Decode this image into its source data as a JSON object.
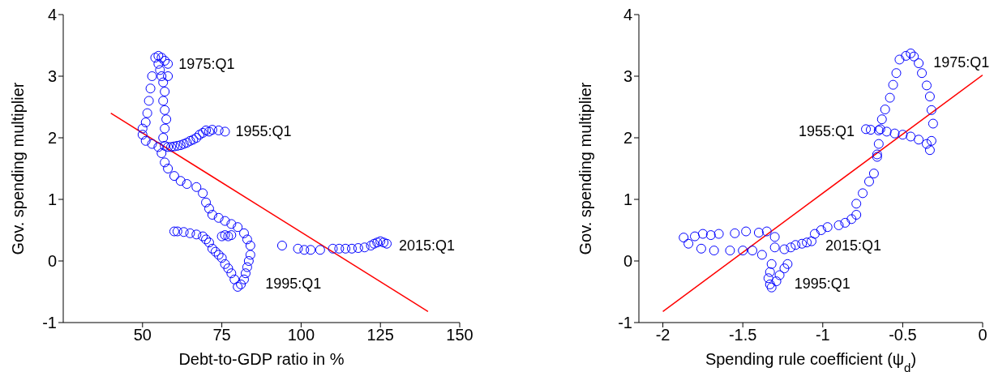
{
  "chart_data": [
    {
      "type": "scatter",
      "xlabel": "Debt-to-GDP ratio in %",
      "ylabel": "Gov. spending multiplier",
      "xlim": [
        25,
        150
      ],
      "ylim": [
        -1,
        4
      ],
      "xticks": [
        50,
        75,
        100,
        125,
        150
      ],
      "yticks": [
        -1,
        0,
        1,
        2,
        3,
        4
      ],
      "series": [
        {
          "marker": "circle",
          "color": "#0000ff",
          "x": [
            76,
            74,
            72,
            71,
            70,
            69,
            68,
            67,
            66,
            65,
            64,
            63,
            62,
            61,
            60,
            59,
            58,
            57,
            56.5,
            57,
            57.5,
            57,
            56.5,
            57,
            56.5,
            56,
            55.5,
            55,
            54,
            55,
            56,
            57,
            58,
            58,
            53,
            52.5,
            52,
            51.5,
            51,
            50,
            50,
            51,
            53,
            55,
            56,
            57,
            58,
            60,
            62,
            64,
            67,
            69,
            70,
            71,
            72,
            74,
            76,
            78,
            80,
            82,
            83,
            84,
            84,
            83.5,
            83,
            82.5,
            82,
            81,
            80,
            79,
            78,
            77,
            76,
            75,
            74,
            73,
            72,
            71,
            70,
            69,
            67,
            65,
            63,
            61,
            60,
            75,
            76,
            77,
            78,
            94,
            99,
            101,
            103,
            106,
            110,
            112,
            114,
            116,
            118,
            120,
            122,
            123,
            124,
            125,
            126,
            127
          ],
          "values": [
            2.1,
            2.12,
            2.13,
            2.1,
            2.12,
            2.08,
            2.05,
            2,
            1.97,
            1.95,
            1.92,
            1.9,
            1.88,
            1.87,
            1.86,
            1.85,
            1.85,
            1.87,
            2,
            2.15,
            2.3,
            2.45,
            2.6,
            2.75,
            2.9,
            3,
            3.1,
            3.2,
            3.3,
            3.33,
            3.3,
            3.25,
            3.2,
            3,
            3,
            2.8,
            2.6,
            2.4,
            2.25,
            2.15,
            2.05,
            1.95,
            1.9,
            1.85,
            1.75,
            1.6,
            1.5,
            1.38,
            1.3,
            1.25,
            1.2,
            1.1,
            0.95,
            0.85,
            0.75,
            0.7,
            0.65,
            0.6,
            0.55,
            0.45,
            0.35,
            0.25,
            0.1,
            0,
            -0.1,
            -0.2,
            -0.3,
            -0.38,
            -0.42,
            -0.3,
            -0.2,
            -0.12,
            -0.05,
            0.05,
            0.1,
            0.15,
            0.2,
            0.3,
            0.35,
            0.4,
            0.43,
            0.45,
            0.47,
            0.48,
            0.48,
            0.4,
            0.42,
            0.4,
            0.42,
            0.25,
            0.2,
            0.18,
            0.18,
            0.18,
            0.2,
            0.2,
            0.2,
            0.2,
            0.21,
            0.22,
            0.25,
            0.28,
            0.3,
            0.32,
            0.3,
            0.28
          ]
        },
        {
          "type": "line",
          "color": "#ff0000",
          "x": [
            40,
            140
          ],
          "values": [
            2.4,
            -0.82
          ]
        }
      ],
      "annotations": [
        {
          "text": "1975:Q1",
          "x": 55,
          "y": 3.33
        },
        {
          "text": "1955:Q1",
          "x": 76,
          "y": 2.1
        },
        {
          "text": "2015:Q1",
          "x": 127,
          "y": 0.28
        },
        {
          "text": "1995:Q1",
          "x": 80,
          "y": -0.42
        }
      ]
    },
    {
      "type": "scatter",
      "xlabel": "Spending rule coefficient (ψ$_{d}$)",
      "ylabel": "Gov. spending multiplier",
      "xlim": [
        -2.15,
        0
      ],
      "ylim": [
        -1,
        4
      ],
      "xticks": [
        -2,
        -1.5,
        -1,
        -0.5,
        0
      ],
      "yticks": [
        -1,
        0,
        1,
        2,
        3,
        4
      ],
      "series": [
        {
          "marker": "circle",
          "color": "#0000ff",
          "x": [
            -0.73,
            -0.7,
            -0.65,
            -0.6,
            -0.55,
            -0.5,
            -0.45,
            -0.4,
            -0.35,
            -0.33,
            -0.32,
            -0.31,
            -0.32,
            -0.33,
            -0.35,
            -0.38,
            -0.4,
            -0.43,
            -0.45,
            -0.48,
            -0.52,
            -0.54,
            -0.56,
            -0.58,
            -0.61,
            -0.63,
            -0.64,
            -0.65,
            -0.66,
            -0.66,
            -0.68,
            -0.71,
            -0.75,
            -0.79,
            -0.79,
            -0.82,
            -0.86,
            -0.9,
            -0.97,
            -1.01,
            -1.05,
            -1.07,
            -1.1,
            -1.13,
            -1.17,
            -1.2,
            -1.24,
            -1.3,
            -1.3,
            -1.35,
            -1.4,
            -1.48,
            -1.55,
            -1.65,
            -1.7,
            -1.75,
            -1.8,
            -1.87,
            -1.84,
            -1.76,
            -1.68,
            -1.58,
            -1.5,
            -1.44,
            -1.38,
            -1.32,
            -1.33,
            -1.34,
            -1.33,
            -1.32,
            -1.29,
            -1.27,
            -1.24,
            -1.22
          ],
          "values": [
            2.14,
            2.13,
            2.12,
            2.1,
            2.07,
            2.05,
            2.02,
            1.97,
            1.9,
            1.8,
            1.95,
            2.23,
            2.45,
            2.67,
            2.85,
            3.05,
            3.21,
            3.32,
            3.37,
            3.33,
            3.27,
            3.05,
            2.86,
            2.65,
            2.46,
            2.3,
            2.14,
            1.9,
            1.73,
            1.69,
            1.42,
            1.29,
            1.1,
            0.93,
            0.75,
            0.68,
            0.62,
            0.58,
            0.55,
            0.5,
            0.44,
            0.32,
            0.3,
            0.28,
            0.26,
            0.22,
            0.19,
            0.22,
            0.39,
            0.48,
            0.46,
            0.48,
            0.45,
            0.44,
            0.42,
            0.44,
            0.4,
            0.38,
            0.28,
            0.2,
            0.17,
            0.17,
            0.17,
            0.17,
            0.1,
            -0.05,
            -0.18,
            -0.28,
            -0.38,
            -0.43,
            -0.33,
            -0.23,
            -0.12,
            -0.05
          ]
        },
        {
          "type": "line",
          "color": "#ff0000",
          "x": [
            -2,
            0
          ],
          "values": [
            -0.82,
            3.02
          ]
        }
      ],
      "annotations": [
        {
          "text": "1975:Q1",
          "x": -0.45,
          "y": 3.37
        },
        {
          "text": "1955:Q1",
          "x": -0.73,
          "y": 2.14
        },
        {
          "text": "2015:Q1",
          "x": -1.07,
          "y": 0.32
        },
        {
          "text": "1995:Q1",
          "x": -1.32,
          "y": -0.43
        }
      ]
    }
  ]
}
